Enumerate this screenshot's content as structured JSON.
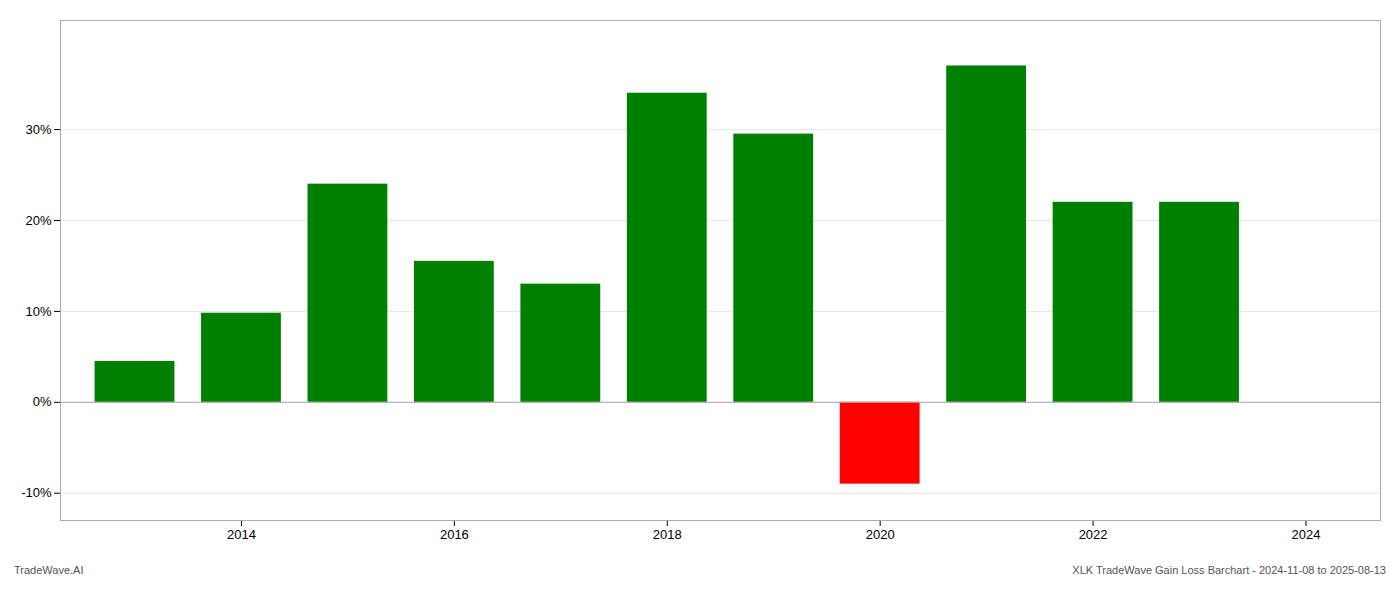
{
  "chart_data": {
    "type": "bar",
    "x": [
      2013,
      2014,
      2015,
      2016,
      2017,
      2018,
      2019,
      2020,
      2021,
      2022,
      2023
    ],
    "values": [
      4.5,
      9.8,
      24.0,
      15.5,
      13.0,
      34.0,
      29.5,
      -9.0,
      37.0,
      22.0,
      22.0
    ],
    "colors": [
      "#008000",
      "#008000",
      "#008000",
      "#008000",
      "#008000",
      "#008000",
      "#008000",
      "#ff0000",
      "#008000",
      "#008000",
      "#008000"
    ],
    "xlim": [
      2012.3,
      2024.7
    ],
    "xticks": [
      2014,
      2016,
      2018,
      2020,
      2022,
      2024
    ],
    "ylim": [
      -13,
      42
    ],
    "yticks": [
      {
        "value": -10,
        "label": "-10%"
      },
      {
        "value": 0,
        "label": "0%"
      },
      {
        "value": 10,
        "label": "10%"
      },
      {
        "value": 20,
        "label": "20%"
      },
      {
        "value": 30,
        "label": "30%"
      }
    ],
    "grid": true,
    "annotations": [
      "TradeWave.AI",
      "XLK TradeWave Gain Loss Barchart - 2024-11-08 to 2025-08-13"
    ]
  }
}
